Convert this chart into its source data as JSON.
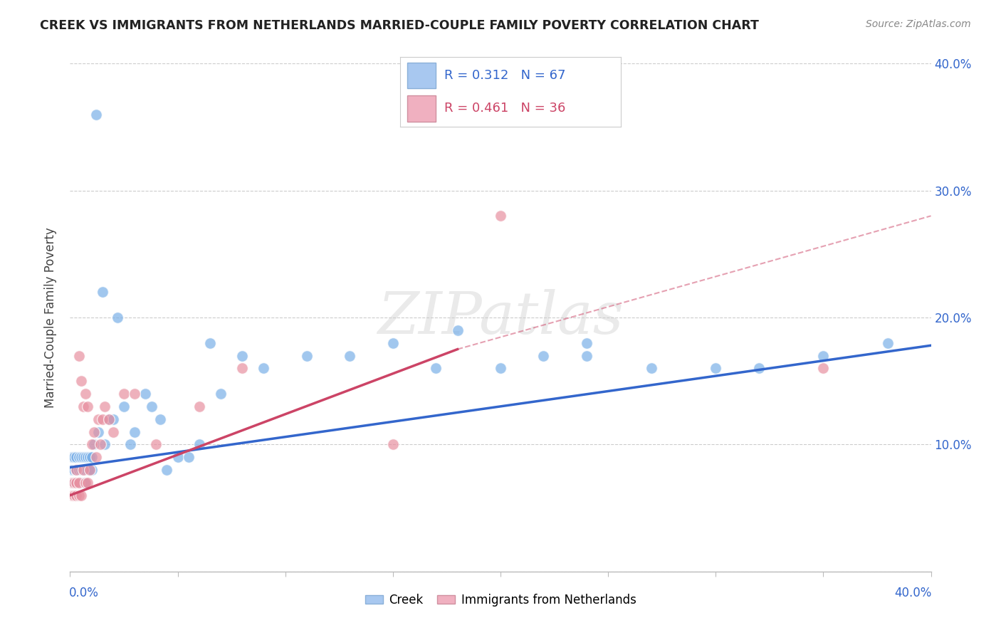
{
  "title": "CREEK VS IMMIGRANTS FROM NETHERLANDS MARRIED-COUPLE FAMILY POVERTY CORRELATION CHART",
  "source": "Source: ZipAtlas.com",
  "ylabel": "Married-Couple Family Poverty",
  "legend1_color": "#a8c8f0",
  "legend2_color": "#f0b0c0",
  "scatter1_color": "#7ab0e8",
  "scatter2_color": "#e890a0",
  "line1_color": "#3366cc",
  "line2_color": "#cc4466",
  "watermark_text": "ZIPatlas",
  "xlim": [
    0.0,
    0.4
  ],
  "ylim": [
    0.0,
    0.4
  ],
  "background_color": "#ffffff",
  "grid_color": "#cccccc",
  "creek_x": [
    0.001,
    0.001,
    0.001,
    0.002,
    0.002,
    0.002,
    0.002,
    0.003,
    0.003,
    0.003,
    0.003,
    0.003,
    0.004,
    0.004,
    0.004,
    0.004,
    0.005,
    0.005,
    0.005,
    0.006,
    0.006,
    0.006,
    0.007,
    0.007,
    0.007,
    0.008,
    0.008,
    0.009,
    0.009,
    0.01,
    0.01,
    0.011,
    0.012,
    0.013,
    0.015,
    0.016,
    0.018,
    0.02,
    0.022,
    0.025,
    0.028,
    0.03,
    0.035,
    0.038,
    0.042,
    0.05,
    0.06,
    0.065,
    0.08,
    0.09,
    0.11,
    0.13,
    0.15,
    0.17,
    0.2,
    0.22,
    0.24,
    0.27,
    0.3,
    0.32,
    0.35,
    0.38,
    0.18,
    0.24,
    0.045,
    0.055,
    0.07
  ],
  "creek_y": [
    0.08,
    0.07,
    0.09,
    0.07,
    0.08,
    0.09,
    0.07,
    0.08,
    0.07,
    0.09,
    0.08,
    0.06,
    0.09,
    0.08,
    0.07,
    0.08,
    0.08,
    0.09,
    0.07,
    0.08,
    0.09,
    0.07,
    0.09,
    0.08,
    0.07,
    0.09,
    0.08,
    0.09,
    0.08,
    0.08,
    0.09,
    0.1,
    0.36,
    0.11,
    0.22,
    0.1,
    0.12,
    0.12,
    0.2,
    0.13,
    0.1,
    0.11,
    0.14,
    0.13,
    0.12,
    0.09,
    0.1,
    0.18,
    0.17,
    0.16,
    0.17,
    0.17,
    0.18,
    0.16,
    0.16,
    0.17,
    0.18,
    0.16,
    0.16,
    0.16,
    0.17,
    0.18,
    0.19,
    0.17,
    0.08,
    0.09,
    0.14
  ],
  "neth_x": [
    0.001,
    0.001,
    0.002,
    0.002,
    0.003,
    0.003,
    0.003,
    0.004,
    0.004,
    0.004,
    0.005,
    0.005,
    0.006,
    0.006,
    0.007,
    0.007,
    0.008,
    0.008,
    0.009,
    0.01,
    0.011,
    0.012,
    0.013,
    0.014,
    0.015,
    0.016,
    0.018,
    0.02,
    0.025,
    0.03,
    0.04,
    0.06,
    0.08,
    0.15,
    0.2,
    0.35
  ],
  "neth_y": [
    0.06,
    0.07,
    0.07,
    0.06,
    0.06,
    0.07,
    0.08,
    0.17,
    0.07,
    0.06,
    0.15,
    0.06,
    0.08,
    0.13,
    0.14,
    0.07,
    0.07,
    0.13,
    0.08,
    0.1,
    0.11,
    0.09,
    0.12,
    0.1,
    0.12,
    0.13,
    0.12,
    0.11,
    0.14,
    0.14,
    0.1,
    0.13,
    0.16,
    0.1,
    0.28,
    0.16
  ],
  "creek_line_x0": 0.0,
  "creek_line_y0": 0.082,
  "creek_line_x1": 0.4,
  "creek_line_y1": 0.178,
  "neth_line_solid_x0": 0.0,
  "neth_line_solid_y0": 0.06,
  "neth_line_solid_x1": 0.18,
  "neth_line_solid_y1": 0.175,
  "neth_line_dash_x0": 0.18,
  "neth_line_dash_y0": 0.175,
  "neth_line_dash_x1": 0.4,
  "neth_line_dash_y1": 0.28
}
